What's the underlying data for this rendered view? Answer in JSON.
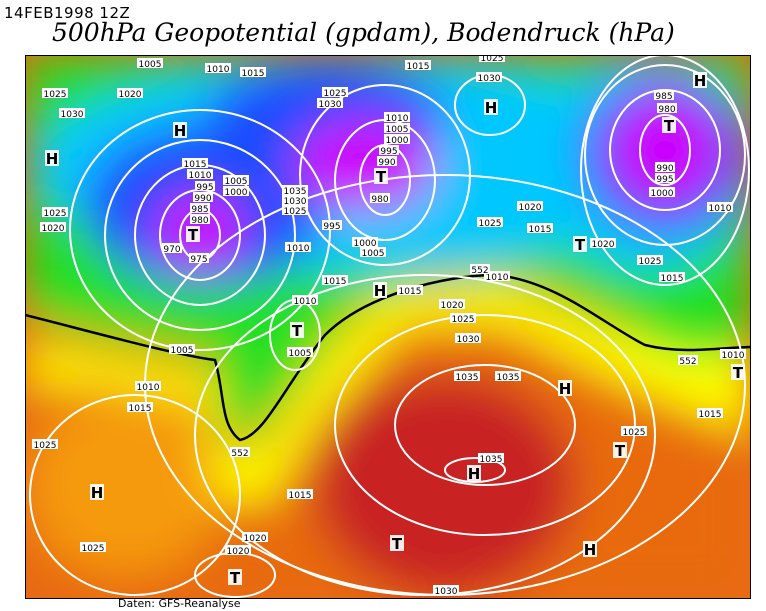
{
  "header": {
    "date": "14FEB1998 12Z",
    "title": "500hPa Geopotential (gpdam), Bodendruck (hPa)"
  },
  "footer": {
    "credit": "Daten: GFS-Reanalyse"
  },
  "map": {
    "region": "North Atlantic / Europe",
    "colors": {
      "low": "#cc00ff",
      "mid_blue": "#1a4cff",
      "cyan": "#00c8ff",
      "green": "#22e020",
      "yellow": "#ffff00",
      "orange": "#ff9900",
      "red": "#c82020",
      "contour": "#ffffff",
      "geopotential_552": "#000000"
    },
    "isobar_labels": [
      "1005",
      "1010",
      "1015",
      "1020",
      "1025",
      "1030",
      "1025",
      "1030",
      "1015",
      "1030",
      "1025",
      "985",
      "980",
      "990",
      "995",
      "1000",
      "1010",
      "1015",
      "1010",
      "1005",
      "1000",
      "995",
      "990",
      "985",
      "980",
      "970",
      "975",
      "1025",
      "1020",
      "1035",
      "1030",
      "1025",
      "1010",
      "1005",
      "1000",
      "995",
      "990",
      "980",
      "995",
      "1000",
      "1005",
      "1010",
      "1015",
      "1025",
      "1020",
      "1015",
      "1020",
      "1025",
      "1015",
      "1010",
      "1005",
      "1005",
      "1010",
      "1015",
      "1025",
      "1035",
      "1035",
      "1030",
      "1025",
      "1020",
      "1010",
      "1015",
      "1035",
      "1025",
      "1015",
      "1010",
      "1015",
      "1020",
      "1020",
      "1025",
      "1030"
    ],
    "geopotential_labels": [
      "552",
      "552",
      "552"
    ],
    "high_marker": "H",
    "low_marker": "T",
    "highs": 9,
    "lows": 9
  }
}
